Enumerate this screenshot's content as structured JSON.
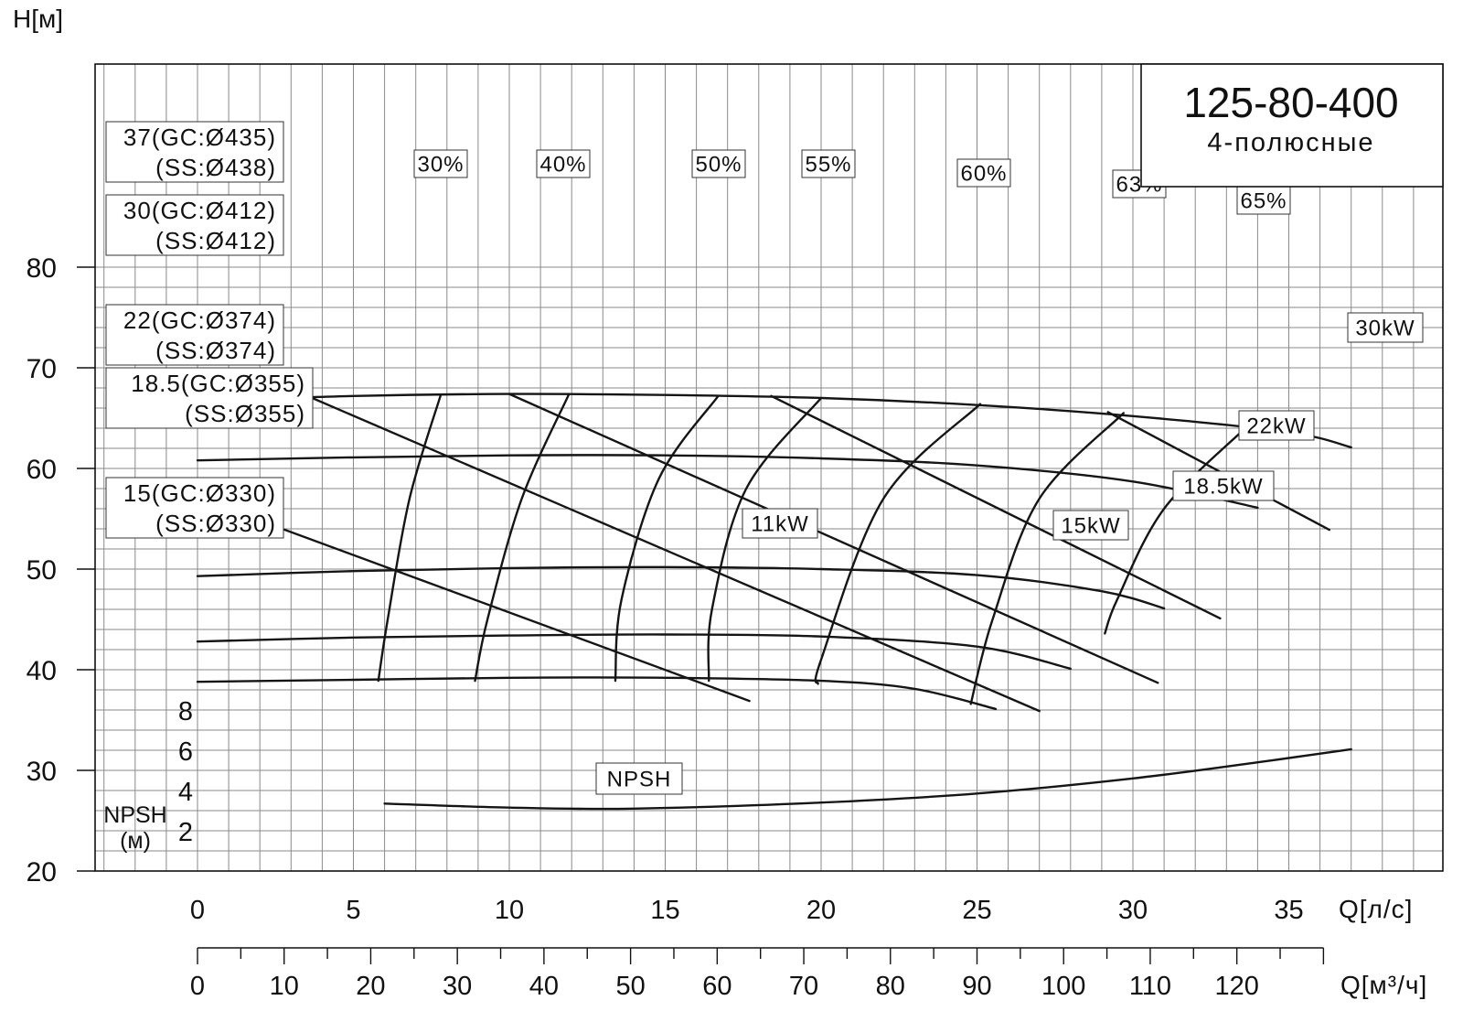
{
  "chart_data": {
    "type": "line",
    "title": "125-80-400",
    "subtitle": "4-полюсные",
    "y_axis": {
      "label": "H[м]",
      "ticks": [
        "20",
        "30",
        "40",
        "50",
        "60",
        "70",
        "80"
      ],
      "range": [
        20,
        80
      ]
    },
    "x_axis": {
      "label": "Q[л/с]",
      "ticks": [
        "0",
        "5",
        "10",
        "15",
        "20",
        "25",
        "30",
        "35"
      ],
      "range": [
        0,
        40
      ]
    },
    "x2_axis": {
      "label": "Q[м³/ч]",
      "ticks": [
        "0",
        "10",
        "20",
        "30",
        "40",
        "50",
        "60",
        "70",
        "80",
        "90",
        "100",
        "110",
        "120"
      ],
      "range": [
        0,
        130
      ]
    },
    "npsh_axis": {
      "label_line1": "NPSH",
      "label_line2": "(м)",
      "ticks": [
        "2",
        "4",
        "6",
        "8"
      ],
      "range": [
        0,
        10
      ]
    },
    "grid": true,
    "head_curves": [
      {
        "label_line1": "37(GC:Ø435)",
        "label_line2": "(SS:Ø438)",
        "points": [
          [
            0,
            66.7
          ],
          [
            5,
            67.2
          ],
          [
            10,
            67.4
          ],
          [
            15,
            67.3
          ],
          [
            20,
            67.0
          ],
          [
            25,
            66.3
          ],
          [
            30,
            65.2
          ],
          [
            35,
            63.6
          ],
          [
            37,
            62.1
          ]
        ]
      },
      {
        "label_line1": "30(GC:Ø412)",
        "label_line2": "(SS:Ø412)",
        "points": [
          [
            0,
            60.8
          ],
          [
            5,
            61.1
          ],
          [
            10,
            61.3
          ],
          [
            15,
            61.3
          ],
          [
            20,
            61.0
          ],
          [
            25,
            60.3
          ],
          [
            30,
            58.7
          ],
          [
            34,
            56.1
          ]
        ]
      },
      {
        "label_line1": "22(GC:Ø374)",
        "label_line2": "(SS:Ø374)",
        "points": [
          [
            0,
            49.3
          ],
          [
            5,
            49.8
          ],
          [
            10,
            50.1
          ],
          [
            15,
            50.2
          ],
          [
            20,
            50.0
          ],
          [
            25,
            49.4
          ],
          [
            29,
            47.8
          ],
          [
            31,
            46.1
          ]
        ]
      },
      {
        "label_line1": "18.5(GC:Ø355)",
        "label_line2": "(SS:Ø355)",
        "points": [
          [
            0,
            42.8
          ],
          [
            5,
            43.2
          ],
          [
            10,
            43.4
          ],
          [
            15,
            43.5
          ],
          [
            20,
            43.3
          ],
          [
            25,
            42.3
          ],
          [
            28,
            40.1
          ]
        ]
      },
      {
        "label_line1": "15(GC:Ø330)",
        "label_line2": "(SS:Ø330)",
        "points": [
          [
            0,
            38.8
          ],
          [
            5,
            39.0
          ],
          [
            10,
            39.2
          ],
          [
            15,
            39.2
          ],
          [
            20,
            38.9
          ],
          [
            23,
            38.1
          ],
          [
            25.6,
            36.1
          ]
        ]
      }
    ],
    "power_lines": [
      {
        "label": "30kW",
        "points": [
          [
            29.2,
            65.6
          ],
          [
            36.3,
            53.9
          ]
        ]
      },
      {
        "label": "22kW",
        "points": [
          [
            18.4,
            67.2
          ],
          [
            32.8,
            45.1
          ]
        ]
      },
      {
        "label": "18.5kW",
        "points": [
          [
            10,
            67.4
          ],
          [
            30.8,
            38.7
          ]
        ]
      },
      {
        "label": "15kW",
        "points": [
          [
            3.6,
            67.1
          ],
          [
            27.0,
            35.9
          ]
        ]
      },
      {
        "label": "11kW",
        "points": [
          [
            0,
            57.1
          ],
          [
            17.7,
            36.9
          ]
        ]
      }
    ],
    "efficiency_curves": [
      {
        "label": "30%",
        "points": [
          [
            7.8,
            67.3
          ],
          [
            6.8,
            57
          ],
          [
            6.1,
            45
          ],
          [
            5.8,
            38.9
          ]
        ]
      },
      {
        "label": "40%",
        "points": [
          [
            11.9,
            67.3
          ],
          [
            10.4,
            57
          ],
          [
            9.3,
            45
          ],
          [
            8.9,
            38.9
          ]
        ]
      },
      {
        "label": "50%",
        "points": [
          [
            16.7,
            67.2
          ],
          [
            14.8,
            59
          ],
          [
            13.6,
            47
          ],
          [
            13.4,
            38.9
          ]
        ]
      },
      {
        "label": "55%",
        "points": [
          [
            20.0,
            67.0
          ],
          [
            17.6,
            58
          ],
          [
            16.5,
            46
          ],
          [
            16.4,
            38.9
          ]
        ]
      },
      {
        "label": "60%",
        "points": [
          [
            25.1,
            66.4
          ],
          [
            22.0,
            57
          ],
          [
            20.0,
            41
          ],
          [
            19.9,
            38.6
          ]
        ]
      },
      {
        "label": "63%",
        "points": [
          [
            29.7,
            65.5
          ],
          [
            27.0,
            57
          ],
          [
            25.5,
            45
          ],
          [
            24.8,
            36.6
          ]
        ]
      },
      {
        "label": "65%",
        "points": [
          [
            33.6,
            64.0
          ],
          [
            31.0,
            56
          ],
          [
            29.5,
            47
          ],
          [
            29.1,
            43.6
          ]
        ]
      }
    ],
    "npsh_curve": {
      "label": "NPSH",
      "points": [
        [
          6,
          3.35
        ],
        [
          10,
          3.15
        ],
        [
          14,
          3.1
        ],
        [
          20,
          3.4
        ],
        [
          25,
          3.85
        ],
        [
          30,
          4.6
        ],
        [
          34,
          5.4
        ],
        [
          37,
          6.05
        ]
      ]
    }
  }
}
